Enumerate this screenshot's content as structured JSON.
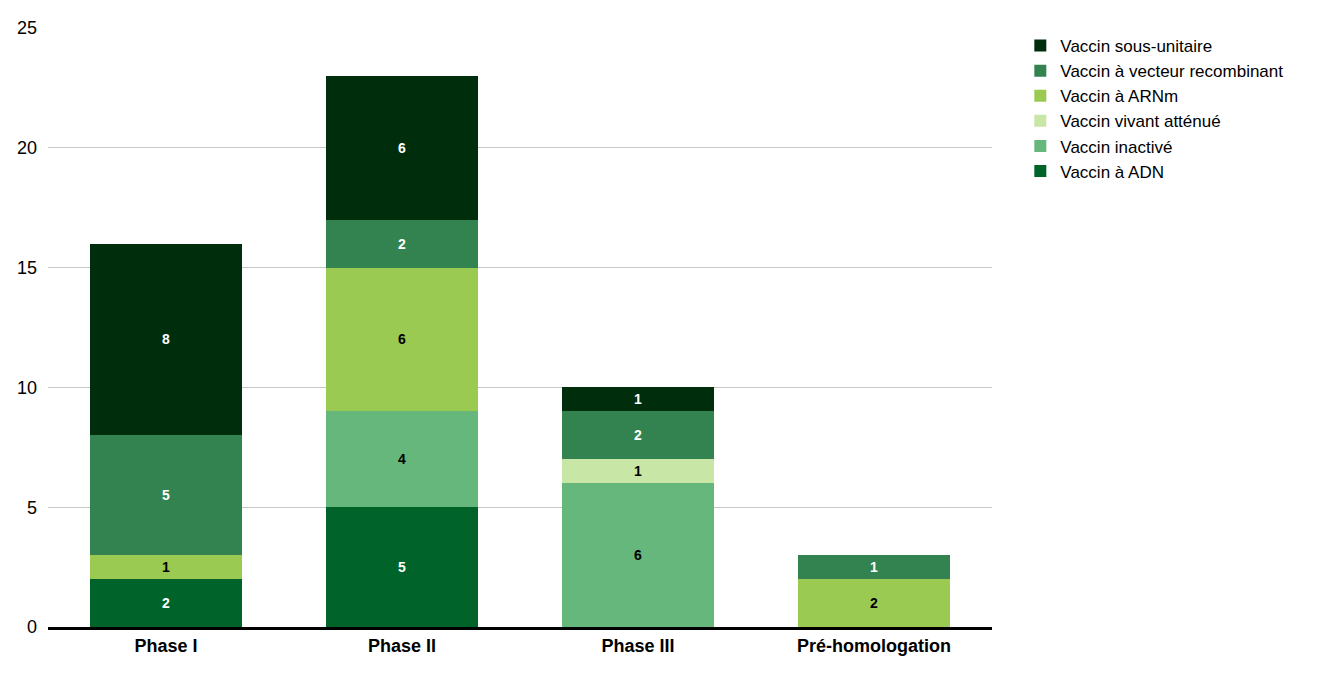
{
  "chart_data": {
    "type": "bar",
    "stacked": true,
    "data_labels": true,
    "grid": true,
    "legend": "top right",
    "categories": [
      "Phase I",
      "Phase II",
      "Phase III",
      "Pré-homologation"
    ],
    "ylim": [
      0,
      25
    ],
    "yticks": [
      0,
      5,
      10,
      15,
      20,
      25
    ],
    "series": [
      {
        "name": "Vaccin à ADN",
        "color": "#00642a",
        "values": [
          2,
          5,
          null,
          null
        ]
      },
      {
        "name": "Vaccin inactivé",
        "color": "#66b77b",
        "values": [
          null,
          4,
          6,
          null
        ]
      },
      {
        "name": "Vaccin vivant atténué",
        "color": "#c8e6a6",
        "values": [
          null,
          null,
          1,
          null
        ]
      },
      {
        "name": "Vaccin à ARNm",
        "color": "#9aca52",
        "values": [
          1,
          6,
          null,
          2
        ]
      },
      {
        "name": "Vaccin à vecteur recombinant",
        "color": "#338350",
        "values": [
          5,
          2,
          2,
          1
        ]
      },
      {
        "name": "Vaccin sous-unitaire",
        "color": "#002e0c",
        "values": [
          8,
          6,
          1,
          null
        ]
      }
    ]
  }
}
